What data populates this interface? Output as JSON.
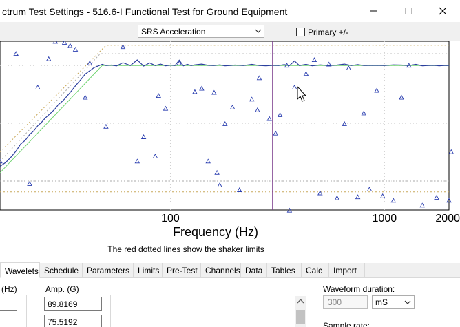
{
  "window": {
    "title": "ctrum Test Settings - 516.6-I Functional Test for Ground Equipment"
  },
  "toolbar": {
    "measure": "SRS Acceleration",
    "primary_label": "Primary +/-",
    "primary_checked": false
  },
  "chart_data": {
    "type": "line",
    "xscale": "log",
    "xlabel": "Frequency (Hz)",
    "ylabel": "",
    "title": "",
    "xlim": [
      16,
      2000
    ],
    "x_ticks": [
      100,
      1000,
      2000
    ],
    "x_tick_labels": [
      "100",
      "1000",
      "2000"
    ],
    "grid": true,
    "note": "The red dotted lines show the shaker limits",
    "cursor_x": 300,
    "series": [
      {
        "role": "reference",
        "color": "#6ed36e",
        "x": [
          16,
          48,
          2000
        ],
        "y": [
          14,
          1000,
          1000
        ]
      },
      {
        "role": "measured",
        "color": "#2b3f9e",
        "x": [
          16,
          17,
          18,
          19,
          20,
          21,
          22,
          23,
          24,
          25,
          26,
          27,
          28,
          29,
          30,
          31,
          32,
          33,
          34,
          35,
          36,
          38,
          40,
          42,
          44,
          46,
          48,
          50,
          53,
          56,
          60,
          65,
          70,
          75,
          80,
          85,
          90,
          95,
          100,
          105,
          110,
          115,
          120,
          125,
          130,
          140,
          150,
          160,
          170,
          180,
          190,
          200,
          220,
          240,
          260,
          280,
          300,
          320,
          340,
          360,
          380,
          400,
          430,
          460,
          500,
          550,
          600,
          650,
          700,
          750,
          800,
          900,
          1000,
          1100,
          1200,
          1300,
          1400,
          1500,
          1600,
          1700,
          1800,
          1900,
          2000
        ],
        "y": [
          18,
          21,
          26,
          33,
          44,
          51,
          64,
          74,
          91,
          104,
          123,
          140,
          158,
          180,
          212,
          234,
          262,
          300,
          341,
          389,
          445,
          562,
          710,
          810,
          920,
          985,
          1050,
          1000,
          1020,
          985,
          1120,
          1000,
          1250,
          980,
          1110,
          1000,
          1060,
          990,
          1020,
          1000,
          1240,
          990,
          1050,
          1000,
          1030,
          1060,
          1010,
          1000,
          1030,
          990,
          1000,
          1020,
          1000,
          1050,
          1000,
          990,
          1010,
          1000,
          1040,
          1000,
          1200,
          1000,
          1050,
          990,
          1030,
          1000,
          1020,
          1060,
          1000,
          1040,
          1000,
          1010,
          1000,
          1030,
          1020,
          1000,
          1050,
          990,
          1000,
          1010,
          990,
          1000,
          1000
        ]
      },
      {
        "role": "upper-limit",
        "color": "#c8a85a",
        "x": [
          16,
          50,
          2000
        ],
        "y": [
          32,
          2240,
          2240
        ]
      },
      {
        "role": "upper-inner",
        "color": "#a9a9a9",
        "x": [
          16,
          47,
          2000
        ],
        "y": [
          22,
          1600,
          1600
        ]
      },
      {
        "role": "lower-inner",
        "color": "#a9a9a9",
        "x": [
          16,
          2000
        ],
        "y": [
          10,
          10
        ]
      },
      {
        "role": "lower-limit",
        "color": "#c8a85a",
        "x": [
          16,
          2000
        ],
        "y": [
          6.5,
          6.5
        ]
      }
    ],
    "scatter": {
      "color": "#2b3fb0",
      "points": [
        [
          16,
          22
        ],
        [
          19,
          1600
        ],
        [
          22,
          9
        ],
        [
          24,
          420
        ],
        [
          27,
          1300
        ],
        [
          29,
          2600
        ],
        [
          32,
          2500
        ],
        [
          34,
          2200
        ],
        [
          36,
          1900
        ],
        [
          40,
          280
        ],
        [
          42,
          1100
        ],
        [
          50,
          88
        ],
        [
          60,
          2100
        ],
        [
          70,
          22
        ],
        [
          75,
          58
        ],
        [
          85,
          27
        ],
        [
          88,
          300
        ],
        [
          95,
          180
        ],
        [
          110,
          1100
        ],
        [
          130,
          350
        ],
        [
          140,
          400
        ],
        [
          150,
          22
        ],
        [
          160,
          340
        ],
        [
          165,
          14
        ],
        [
          170,
          8.5
        ],
        [
          180,
          98
        ],
        [
          195,
          190
        ],
        [
          210,
          7
        ],
        [
          240,
          260
        ],
        [
          255,
          170
        ],
        [
          260,
          610
        ],
        [
          290,
          120
        ],
        [
          310,
          67
        ],
        [
          325,
          140
        ],
        [
          350,
          1000
        ],
        [
          360,
          3.1
        ],
        [
          380,
          420
        ],
        [
          430,
          720
        ],
        [
          470,
          1250
        ],
        [
          500,
          6.2
        ],
        [
          550,
          1050
        ],
        [
          600,
          5.1
        ],
        [
          650,
          98
        ],
        [
          680,
          900
        ],
        [
          750,
          5.3
        ],
        [
          800,
          150
        ],
        [
          850,
          7.2
        ],
        [
          920,
          370
        ],
        [
          980,
          5.5
        ],
        [
          1100,
          4.6
        ],
        [
          1200,
          280
        ],
        [
          1300,
          1000
        ],
        [
          1500,
          3.8
        ],
        [
          1750,
          5.2
        ],
        [
          2000,
          4.6
        ],
        [
          2050,
          32
        ]
      ]
    }
  },
  "tabs": [
    {
      "label": "Wavelets",
      "active": true
    },
    {
      "label": "Schedule",
      "active": false
    },
    {
      "label": "Parameters",
      "active": false
    },
    {
      "label": "Limits",
      "active": false
    },
    {
      "label": "Pre-Test",
      "active": false
    },
    {
      "label": "Channels",
      "active": false
    },
    {
      "label": "Data",
      "active": false
    },
    {
      "label": "Tables",
      "active": false
    },
    {
      "label": "Calc",
      "active": false
    },
    {
      "label": "Import",
      "active": false
    }
  ],
  "wavelets": {
    "freq_header": "(Hz)",
    "amp_header": "Amp. (G)",
    "freq_values": [
      "",
      ""
    ],
    "amp_values": [
      "89.8169",
      "75.5192"
    ]
  },
  "waveform": {
    "duration_label": "Waveform duration:",
    "duration_value": "300",
    "unit": "mS",
    "sample_rate_label": "Sample rate:"
  }
}
